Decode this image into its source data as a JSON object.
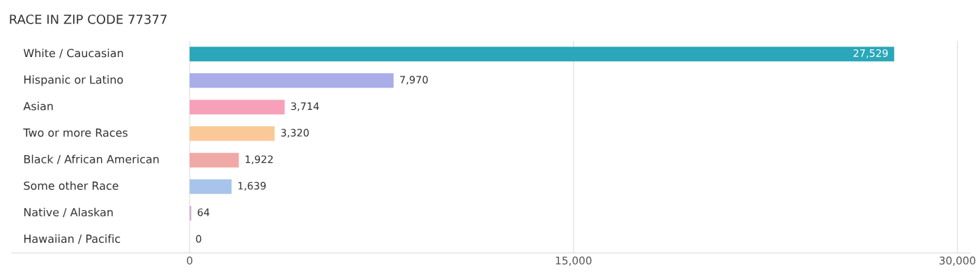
{
  "chart_data": {
    "type": "bar",
    "orientation": "horizontal",
    "title": "RACE IN ZIP CODE 77377",
    "categories": [
      "White / Caucasian",
      "Hispanic or Latino",
      "Asian",
      "Two or more Races",
      "Black / African American",
      "Some other Race",
      "Native / Alaskan",
      "Hawaiian / Pacific"
    ],
    "values": [
      27529,
      7970,
      3714,
      3320,
      1922,
      1639,
      64,
      0
    ],
    "value_labels": [
      "27,529",
      "7,970",
      "3,714",
      "3,320",
      "1,922",
      "1,639",
      "64",
      "0"
    ],
    "colors": [
      "#2aa7b8",
      "#a9aee8",
      "#f6a1b9",
      "#fbc898",
      "#f0a9a6",
      "#a7c5ea",
      "#cdaed4",
      "#80d0d5"
    ],
    "xlim": [
      -6950,
      30500
    ],
    "xticks": [
      0,
      {
        "value": 15000,
        "label": "15,000"
      },
      {
        "value": 30000,
        "label": "30,000"
      }
    ],
    "grid": "x"
  }
}
